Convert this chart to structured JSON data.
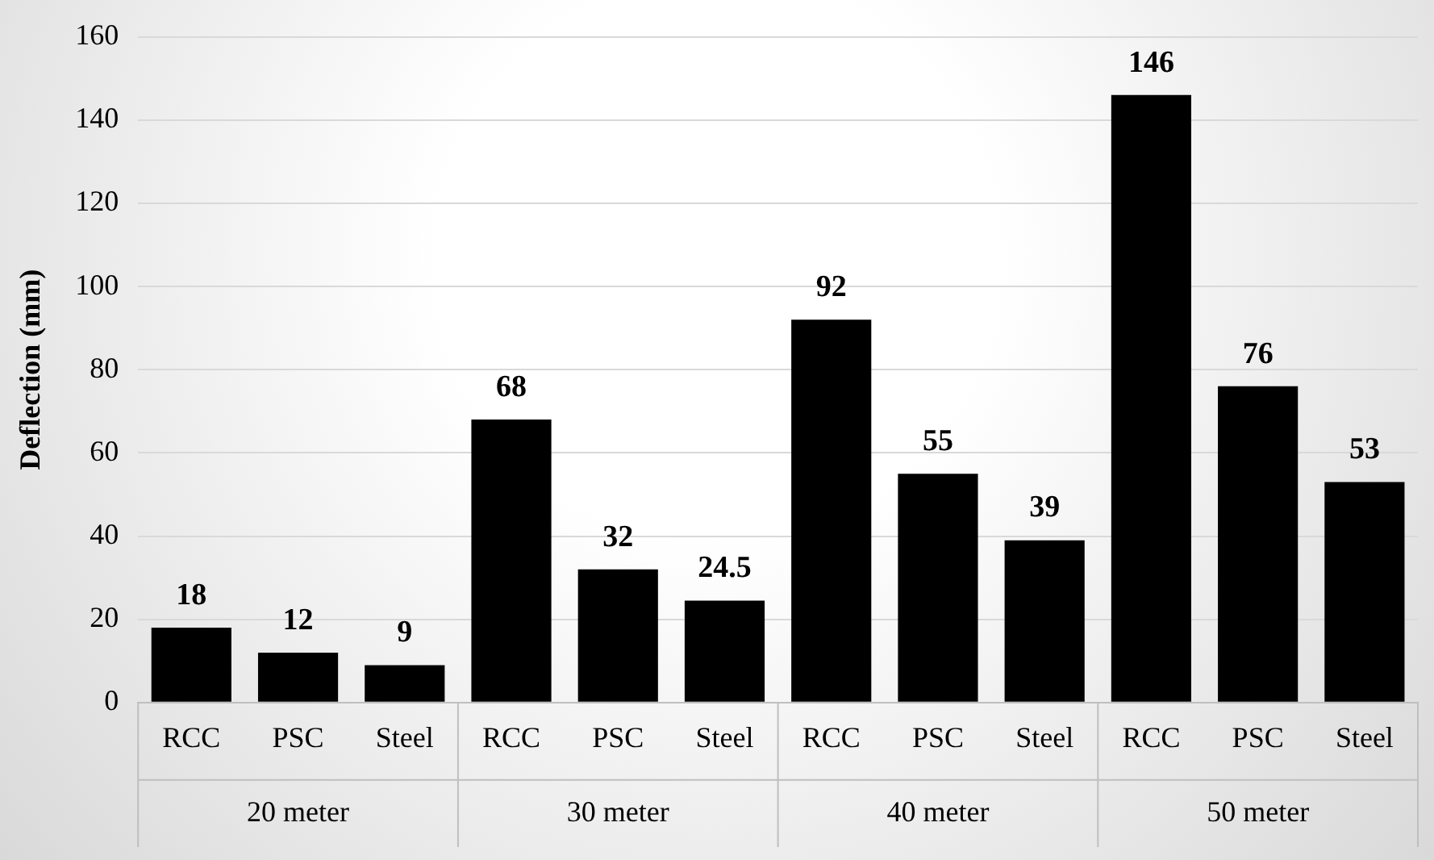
{
  "chart_data": {
    "type": "bar",
    "ylabel": "Deflection (mm)",
    "categories": [
      "RCC",
      "PSC",
      "Steel",
      "RCC",
      "PSC",
      "Steel",
      "RCC",
      "PSC",
      "Steel",
      "RCC",
      "PSC",
      "Steel"
    ],
    "values": [
      18,
      12,
      9,
      68,
      32,
      24.5,
      92,
      55,
      39,
      146,
      76,
      53
    ],
    "color": "#000000",
    "ylim": [
      0,
      160
    ],
    "yticks": [
      0,
      20,
      40,
      60,
      80,
      100,
      120,
      140,
      160
    ],
    "grid": "y",
    "data_labels": true,
    "legend": false,
    "annotations": [
      "20 meter",
      "30 meter",
      "40 meter",
      "50 meter"
    ]
  }
}
